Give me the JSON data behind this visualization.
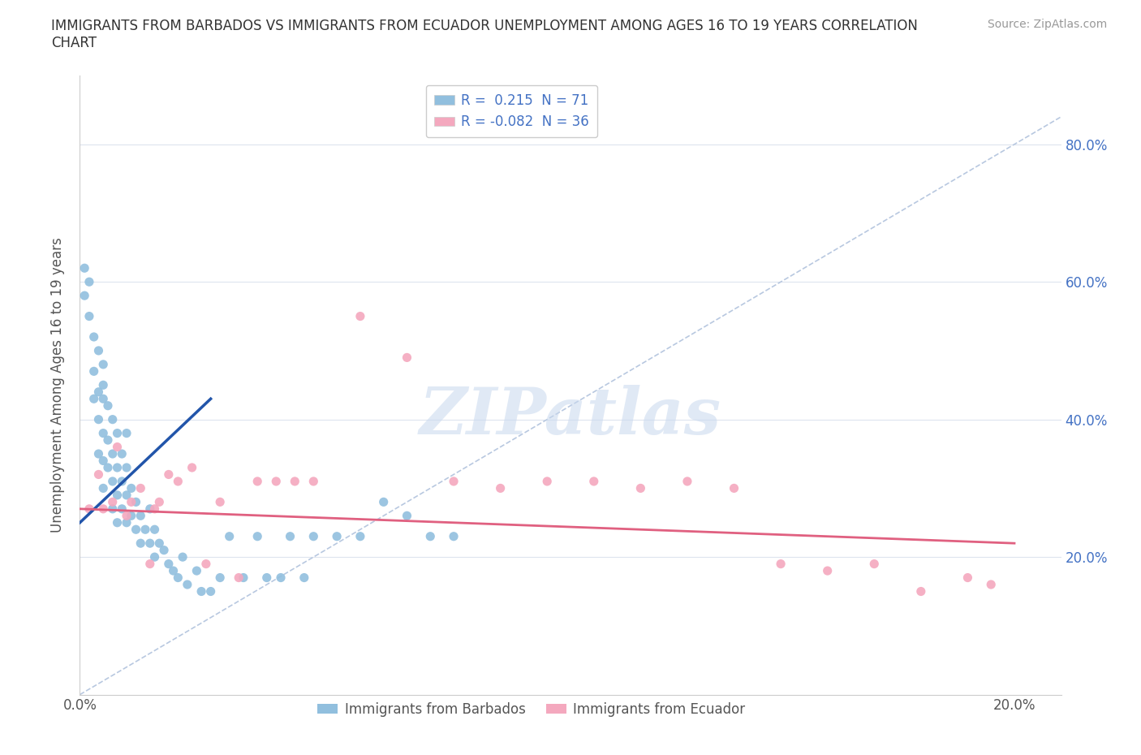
{
  "title": "IMMIGRANTS FROM BARBADOS VS IMMIGRANTS FROM ECUADOR UNEMPLOYMENT AMONG AGES 16 TO 19 YEARS CORRELATION\nCHART",
  "source": "Source: ZipAtlas.com",
  "ylabel": "Unemployment Among Ages 16 to 19 years",
  "watermark": "ZIPatlas",
  "barbados_color": "#91bfde",
  "ecuador_color": "#f4a8be",
  "barbados_trend_color": "#2255aa",
  "ecuador_trend_color": "#e06080",
  "diagonal_color": "#b8c8e0",
  "grid_color": "#dde4ee",
  "xlim": [
    0.0,
    0.21
  ],
  "ylim": [
    0.0,
    0.9
  ],
  "xticks": [
    0.0,
    0.04,
    0.08,
    0.12,
    0.16,
    0.2
  ],
  "xticklabels": [
    "0.0%",
    "",
    "",
    "",
    "",
    "20.0%"
  ],
  "yticks": [
    0.2,
    0.4,
    0.6,
    0.8
  ],
  "yticklabels_right": [
    "20.0%",
    "40.0%",
    "60.0%",
    "80.0%"
  ],
  "legend_top": [
    "R =  0.215  N = 71",
    "R = -0.082  N = 36"
  ],
  "legend_bottom": [
    "Immigrants from Barbados",
    "Immigrants from Ecuador"
  ],
  "barbados_x": [
    0.001,
    0.001,
    0.002,
    0.002,
    0.003,
    0.003,
    0.003,
    0.004,
    0.004,
    0.004,
    0.004,
    0.005,
    0.005,
    0.005,
    0.005,
    0.005,
    0.005,
    0.006,
    0.006,
    0.006,
    0.007,
    0.007,
    0.007,
    0.007,
    0.008,
    0.008,
    0.008,
    0.008,
    0.009,
    0.009,
    0.009,
    0.01,
    0.01,
    0.01,
    0.01,
    0.011,
    0.011,
    0.012,
    0.012,
    0.013,
    0.013,
    0.014,
    0.015,
    0.015,
    0.016,
    0.016,
    0.017,
    0.018,
    0.019,
    0.02,
    0.021,
    0.022,
    0.023,
    0.025,
    0.026,
    0.028,
    0.03,
    0.032,
    0.035,
    0.038,
    0.04,
    0.043,
    0.045,
    0.048,
    0.05,
    0.055,
    0.06,
    0.065,
    0.07,
    0.075,
    0.08
  ],
  "barbados_y": [
    0.62,
    0.58,
    0.6,
    0.55,
    0.52,
    0.47,
    0.43,
    0.5,
    0.44,
    0.4,
    0.35,
    0.48,
    0.43,
    0.38,
    0.34,
    0.3,
    0.45,
    0.42,
    0.37,
    0.33,
    0.4,
    0.35,
    0.31,
    0.27,
    0.38,
    0.33,
    0.29,
    0.25,
    0.35,
    0.31,
    0.27,
    0.33,
    0.29,
    0.25,
    0.38,
    0.3,
    0.26,
    0.28,
    0.24,
    0.26,
    0.22,
    0.24,
    0.22,
    0.27,
    0.2,
    0.24,
    0.22,
    0.21,
    0.19,
    0.18,
    0.17,
    0.2,
    0.16,
    0.18,
    0.15,
    0.15,
    0.17,
    0.23,
    0.17,
    0.23,
    0.17,
    0.17,
    0.23,
    0.17,
    0.23,
    0.23,
    0.23,
    0.28,
    0.26,
    0.23,
    0.23
  ],
  "ecuador_x": [
    0.002,
    0.004,
    0.005,
    0.007,
    0.008,
    0.01,
    0.011,
    0.013,
    0.015,
    0.016,
    0.017,
    0.019,
    0.021,
    0.024,
    0.027,
    0.03,
    0.034,
    0.038,
    0.042,
    0.046,
    0.05,
    0.06,
    0.07,
    0.08,
    0.09,
    0.1,
    0.11,
    0.12,
    0.13,
    0.14,
    0.15,
    0.16,
    0.17,
    0.18,
    0.19,
    0.195
  ],
  "ecuador_y": [
    0.27,
    0.32,
    0.27,
    0.28,
    0.36,
    0.26,
    0.28,
    0.3,
    0.19,
    0.27,
    0.28,
    0.32,
    0.31,
    0.33,
    0.19,
    0.28,
    0.17,
    0.31,
    0.31,
    0.31,
    0.31,
    0.55,
    0.49,
    0.31,
    0.3,
    0.31,
    0.31,
    0.3,
    0.31,
    0.3,
    0.19,
    0.18,
    0.19,
    0.15,
    0.17,
    0.16
  ],
  "barbados_trend_x": [
    0.0,
    0.028
  ],
  "barbados_trend_y": [
    0.25,
    0.43
  ],
  "ecuador_trend_x": [
    0.0,
    0.2
  ],
  "ecuador_trend_y": [
    0.27,
    0.22
  ]
}
